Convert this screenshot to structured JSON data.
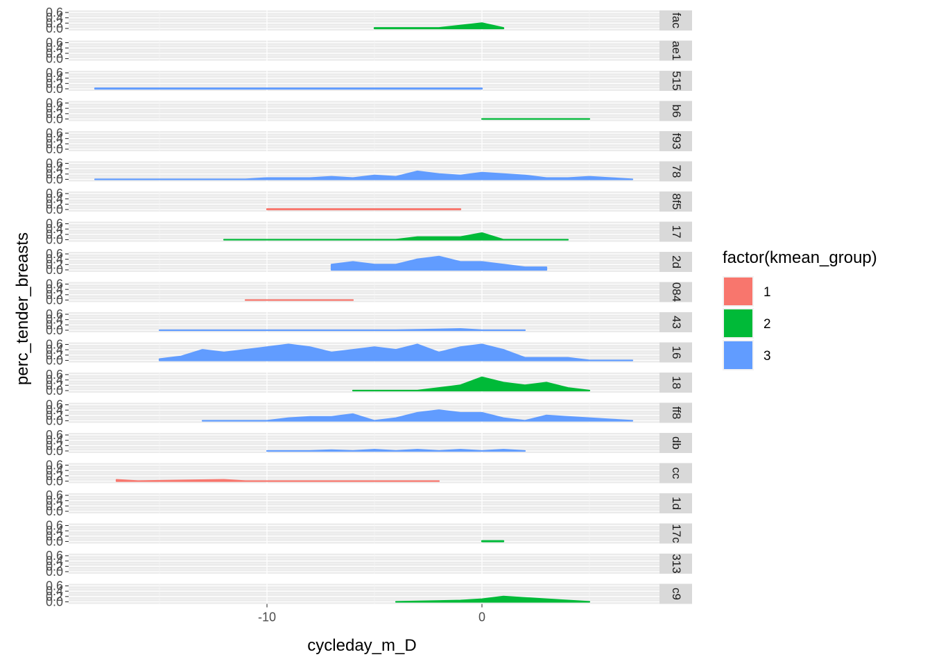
{
  "chart_data": {
    "type": "area",
    "title": "",
    "xlabel": "cycleday_m_D",
    "ylabel": "perc_tender_breasts",
    "xlim": [
      -19,
      10
    ],
    "ylim": [
      0,
      0.6
    ],
    "x_ticks": [
      -10,
      0
    ],
    "x_tick_labels": [
      "-10",
      "0"
    ],
    "y_ticks": [
      0.0,
      0.2,
      0.4,
      0.6
    ],
    "y_tick_labels": [
      "0.0",
      "0.2",
      "0.4",
      "0.6"
    ],
    "legend": {
      "title": "factor(kmean_group)",
      "placement": "right",
      "entries": [
        {
          "label": "1",
          "color": "#F8766D"
        },
        {
          "label": "2",
          "color": "#00BA38"
        },
        {
          "label": "3",
          "color": "#619CFF"
        }
      ]
    },
    "panels": [
      {
        "strip": "fac",
        "group": "2",
        "x": [
          -5,
          -2,
          0,
          1
        ],
        "y": [
          0.02,
          0.02,
          0.2,
          0.02
        ]
      },
      {
        "strip": "ae1",
        "group": null,
        "x": [],
        "y": []
      },
      {
        "strip": "515",
        "group": "3",
        "x": [
          -18,
          0
        ],
        "y": [
          0.02,
          0.02
        ]
      },
      {
        "strip": "b6",
        "group": "2",
        "x": [
          0,
          5
        ],
        "y": [
          0.0,
          0.0
        ]
      },
      {
        "strip": "f93",
        "group": null,
        "x": [],
        "y": []
      },
      {
        "strip": "78",
        "group": "3",
        "x": [
          -18,
          -11,
          -10,
          -8,
          -7,
          -6,
          -5,
          -4,
          -3,
          -2,
          -1,
          0,
          1,
          2,
          3,
          4,
          5,
          6,
          7
        ],
        "y": [
          0.0,
          0.0,
          0.05,
          0.05,
          0.1,
          0.05,
          0.15,
          0.1,
          0.3,
          0.2,
          0.15,
          0.25,
          0.2,
          0.15,
          0.05,
          0.05,
          0.1,
          0.05,
          0.0
        ]
      },
      {
        "strip": "8f5",
        "group": "1",
        "x": [
          -10,
          -1
        ],
        "y": [
          0.02,
          0.02
        ]
      },
      {
        "strip": "17",
        "group": "2",
        "x": [
          -12,
          -4,
          -3,
          -1,
          0,
          1,
          4
        ],
        "y": [
          0.0,
          0.0,
          0.1,
          0.1,
          0.25,
          0.0,
          0.0
        ]
      },
      {
        "strip": "2d",
        "group": "3",
        "x": [
          -7,
          -6,
          -5,
          -4,
          -3,
          -2,
          -1,
          0,
          1,
          2,
          3
        ],
        "y": [
          0.2,
          0.3,
          0.2,
          0.2,
          0.4,
          0.5,
          0.3,
          0.3,
          0.2,
          0.1,
          0.1
        ]
      },
      {
        "strip": "084",
        "group": "1",
        "x": [
          -11,
          -6
        ],
        "y": [
          0.0,
          0.0
        ]
      },
      {
        "strip": "43",
        "group": "3",
        "x": [
          -15,
          -4,
          -1,
          0,
          2
        ],
        "y": [
          0.0,
          0.0,
          0.05,
          0.0,
          0.0
        ]
      },
      {
        "strip": "16",
        "group": "3",
        "x": [
          -15,
          -14,
          -13,
          -12,
          -11,
          -10,
          -9,
          -8,
          -7,
          -6,
          -5,
          -4,
          -3,
          -2,
          -1,
          0,
          1,
          2,
          3,
          4,
          5,
          6,
          7
        ],
        "y": [
          0.05,
          0.15,
          0.4,
          0.3,
          0.4,
          0.5,
          0.6,
          0.5,
          0.3,
          0.4,
          0.5,
          0.4,
          0.6,
          0.3,
          0.5,
          0.6,
          0.4,
          0.1,
          0.1,
          0.1,
          0.0,
          0.0,
          0.0
        ]
      },
      {
        "strip": "18",
        "group": "2",
        "x": [
          -6,
          -3,
          -2,
          -1,
          0,
          1,
          2,
          3,
          4,
          5
        ],
        "y": [
          0.0,
          0.0,
          0.1,
          0.2,
          0.5,
          0.3,
          0.2,
          0.3,
          0.1,
          0.0
        ]
      },
      {
        "strip": "ff8",
        "group": "3",
        "x": [
          -13,
          -10,
          -9,
          -8,
          -7,
          -6,
          -5,
          -4,
          -3,
          -2,
          -1,
          0,
          1,
          2,
          3,
          4,
          5,
          6,
          7
        ],
        "y": [
          0.0,
          0.0,
          0.1,
          0.15,
          0.15,
          0.25,
          0.0,
          0.1,
          0.3,
          0.4,
          0.3,
          0.3,
          0.1,
          0.0,
          0.2,
          0.15,
          0.1,
          0.05,
          0.0
        ]
      },
      {
        "strip": "db",
        "group": "3",
        "x": [
          -10,
          -9,
          -8,
          -7,
          -6,
          -5,
          -4,
          -3,
          -2,
          -1,
          0,
          1,
          2
        ],
        "y": [
          0.0,
          0.0,
          0.0,
          0.03,
          0.0,
          0.05,
          0.0,
          0.05,
          0.0,
          0.05,
          0.0,
          0.05,
          0.0
        ]
      },
      {
        "strip": "cc",
        "group": "1",
        "x": [
          -17,
          -16,
          -12,
          -11,
          -2
        ],
        "y": [
          0.05,
          0.0,
          0.05,
          0.0,
          0.0
        ]
      },
      {
        "strip": "1d",
        "group": null,
        "x": [],
        "y": []
      },
      {
        "strip": "17c",
        "group": "2",
        "x": [
          0,
          1
        ],
        "y": [
          0.02,
          0.02
        ]
      },
      {
        "strip": "313",
        "group": null,
        "x": [],
        "y": []
      },
      {
        "strip": "c9",
        "group": "2",
        "x": [
          -4,
          -1,
          0,
          1,
          2,
          3,
          4,
          5
        ],
        "y": [
          0.0,
          0.05,
          0.1,
          0.2,
          0.15,
          0.1,
          0.05,
          0.0
        ]
      }
    ]
  }
}
